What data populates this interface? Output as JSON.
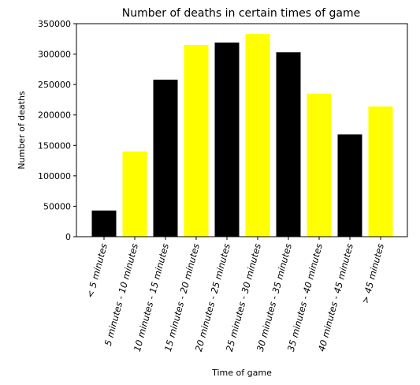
{
  "chart_data": {
    "type": "bar",
    "title": "Number of deaths in certain times of game",
    "xlabel": "Time of game",
    "ylabel": "Number of deaths",
    "ylim": [
      0,
      350000
    ],
    "yticks": [
      0,
      50000,
      100000,
      150000,
      200000,
      250000,
      300000,
      350000
    ],
    "categories": [
      "< 5 minutes",
      "5 minutes - 10 minutes",
      "10 minutes - 15 minutes",
      "15 minutes - 20 minutes",
      "20 minutes - 25 minutes",
      "25 minutes - 30 minutes",
      "30 minutes - 35 minutes",
      "35 minutes - 40 minutes",
      "40 minutes - 45 minutes",
      "> 45 minutes"
    ],
    "values": [
      43000,
      140000,
      258000,
      315000,
      319000,
      333000,
      303000,
      235000,
      168000,
      214000
    ],
    "bar_colors": [
      "#000000",
      "#ffff00",
      "#000000",
      "#ffff00",
      "#000000",
      "#ffff00",
      "#000000",
      "#ffff00",
      "#000000",
      "#ffff00"
    ],
    "grid": false,
    "legend": "none"
  }
}
